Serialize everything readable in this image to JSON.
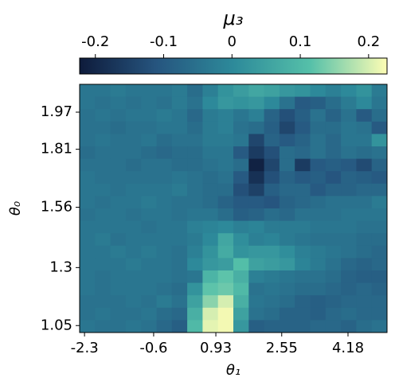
{
  "chart_data": {
    "type": "heatmap",
    "title": "μ₃",
    "xlabel": "θ₁",
    "ylabel": "θ₀",
    "xlim": [
      -2.42,
      5.14
    ],
    "xticks": [
      -2.3,
      -0.6,
      0.93,
      2.55,
      4.18
    ],
    "ylim": [
      1.02,
      2.09
    ],
    "yticks": [
      1.05,
      1.3,
      1.56,
      1.81,
      1.97
    ],
    "clim": [
      -0.223,
      0.227
    ],
    "cticks": [
      -0.2,
      -0.1,
      0.0,
      0.1,
      0.2
    ],
    "colormap": [
      "#0e1b3b",
      "#26557f",
      "#2d8a9a",
      "#55c0a9",
      "#fdfdb4"
    ],
    "z": [
      [
        -0.04,
        -0.04,
        -0.03,
        -0.04,
        -0.04,
        -0.04,
        -0.03,
        -0.06,
        -0.02,
        0.02,
        0.04,
        0.06,
        0.05,
        0.03,
        0.02,
        0.0,
        -0.02,
        0.0,
        0.02,
        -0.03
      ],
      [
        -0.04,
        -0.05,
        -0.04,
        -0.05,
        -0.04,
        -0.05,
        -0.03,
        -0.05,
        0.0,
        0.03,
        0.02,
        0.03,
        0.0,
        -0.05,
        -0.1,
        -0.09,
        -0.06,
        -0.03,
        0.0,
        -0.04
      ],
      [
        -0.05,
        -0.04,
        -0.05,
        -0.04,
        -0.04,
        -0.03,
        -0.04,
        -0.07,
        -0.03,
        -0.02,
        -0.04,
        -0.02,
        -0.08,
        -0.12,
        -0.09,
        -0.05,
        -0.08,
        -0.05,
        -0.1,
        -0.06
      ],
      [
        -0.05,
        -0.05,
        -0.06,
        -0.05,
        -0.05,
        -0.04,
        -0.04,
        -0.06,
        -0.03,
        -0.02,
        -0.05,
        -0.06,
        -0.09,
        -0.14,
        -0.1,
        -0.06,
        -0.06,
        -0.04,
        -0.05,
        -0.1
      ],
      [
        -0.05,
        -0.04,
        -0.05,
        -0.05,
        -0.04,
        -0.06,
        -0.05,
        -0.05,
        -0.03,
        -0.03,
        -0.04,
        -0.14,
        -0.08,
        -0.1,
        -0.08,
        -0.05,
        -0.07,
        -0.04,
        -0.04,
        0.02
      ],
      [
        -0.06,
        -0.05,
        -0.05,
        -0.05,
        -0.06,
        -0.07,
        -0.06,
        -0.06,
        -0.04,
        -0.04,
        -0.1,
        -0.16,
        -0.12,
        -0.06,
        -0.07,
        -0.05,
        -0.07,
        -0.05,
        -0.06,
        -0.05
      ],
      [
        -0.05,
        -0.05,
        -0.05,
        -0.06,
        -0.05,
        -0.05,
        -0.06,
        -0.06,
        -0.05,
        -0.04,
        -0.06,
        -0.21,
        -0.14,
        -0.06,
        -0.16,
        -0.1,
        -0.09,
        -0.1,
        -0.13,
        -0.08
      ],
      [
        -0.04,
        -0.05,
        -0.05,
        -0.05,
        -0.05,
        -0.05,
        -0.04,
        -0.05,
        -0.06,
        -0.05,
        -0.1,
        -0.18,
        -0.12,
        -0.08,
        -0.1,
        -0.09,
        -0.11,
        -0.08,
        -0.09,
        -0.1
      ],
      [
        -0.04,
        -0.04,
        -0.05,
        -0.04,
        -0.04,
        -0.04,
        -0.03,
        -0.05,
        -0.06,
        -0.06,
        -0.12,
        -0.15,
        -0.09,
        -0.07,
        -0.07,
        -0.1,
        -0.08,
        -0.08,
        -0.07,
        -0.07
      ],
      [
        -0.04,
        -0.05,
        -0.04,
        -0.04,
        -0.03,
        -0.04,
        -0.05,
        -0.05,
        -0.06,
        -0.08,
        -0.1,
        -0.1,
        -0.11,
        -0.08,
        -0.07,
        -0.06,
        -0.05,
        -0.05,
        -0.05,
        -0.03
      ],
      [
        -0.05,
        -0.04,
        -0.04,
        -0.05,
        -0.04,
        -0.04,
        -0.05,
        -0.04,
        -0.04,
        -0.06,
        -0.09,
        -0.08,
        -0.06,
        -0.07,
        -0.05,
        -0.05,
        -0.05,
        -0.04,
        -0.04,
        -0.04
      ],
      [
        -0.04,
        -0.04,
        -0.04,
        -0.04,
        -0.05,
        -0.04,
        -0.04,
        -0.02,
        -0.01,
        0.0,
        -0.02,
        -0.01,
        -0.03,
        -0.03,
        -0.03,
        -0.04,
        -0.04,
        -0.04,
        -0.05,
        -0.05
      ],
      [
        -0.04,
        -0.03,
        -0.05,
        -0.04,
        -0.04,
        -0.04,
        -0.04,
        -0.03,
        0.0,
        0.06,
        0.01,
        -0.02,
        -0.01,
        -0.03,
        -0.04,
        -0.05,
        -0.05,
        -0.05,
        -0.06,
        -0.06
      ],
      [
        -0.04,
        -0.04,
        -0.03,
        -0.04,
        -0.03,
        -0.04,
        -0.05,
        -0.02,
        0.02,
        0.07,
        0.02,
        0.03,
        0.03,
        0.01,
        -0.02,
        -0.03,
        -0.04,
        -0.05,
        -0.06,
        -0.07
      ],
      [
        -0.04,
        -0.04,
        -0.04,
        -0.03,
        -0.04,
        -0.04,
        -0.05,
        0.0,
        0.03,
        0.04,
        0.11,
        0.05,
        0.04,
        0.03,
        -0.01,
        -0.03,
        -0.05,
        -0.07,
        -0.08,
        -0.07
      ],
      [
        -0.04,
        -0.05,
        -0.04,
        -0.04,
        -0.04,
        -0.04,
        -0.05,
        -0.04,
        0.09,
        0.12,
        0.08,
        -0.02,
        -0.03,
        -0.04,
        -0.05,
        -0.05,
        -0.06,
        -0.08,
        -0.09,
        -0.09
      ],
      [
        -0.04,
        -0.05,
        -0.04,
        -0.04,
        -0.04,
        -0.05,
        -0.06,
        0.02,
        0.12,
        0.13,
        0.1,
        -0.05,
        -0.04,
        -0.05,
        -0.06,
        -0.06,
        -0.07,
        -0.08,
        -0.07,
        -0.08
      ],
      [
        -0.05,
        -0.05,
        -0.05,
        -0.04,
        -0.05,
        -0.03,
        -0.05,
        0.05,
        0.15,
        0.2,
        0.08,
        -0.04,
        -0.05,
        -0.06,
        -0.08,
        -0.09,
        -0.08,
        -0.07,
        -0.07,
        -0.07
      ],
      [
        -0.05,
        -0.04,
        -0.05,
        -0.05,
        -0.04,
        -0.06,
        -0.07,
        0.08,
        0.2,
        0.22,
        0.05,
        -0.05,
        -0.06,
        -0.08,
        -0.08,
        -0.09,
        -0.07,
        -0.06,
        -0.07,
        -0.07
      ],
      [
        -0.04,
        -0.05,
        -0.05,
        -0.04,
        -0.05,
        -0.07,
        -0.09,
        0.1,
        0.21,
        0.22,
        0.03,
        -0.09,
        -0.08,
        -0.08,
        -0.08,
        -0.07,
        -0.07,
        -0.08,
        -0.06,
        -0.05
      ]
    ]
  }
}
